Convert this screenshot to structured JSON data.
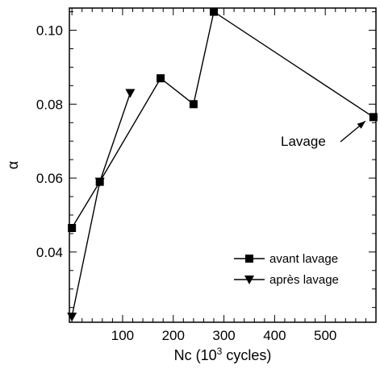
{
  "chart_data": {
    "type": "line",
    "xlabel": "Nc (10",
    "xlabel_sup": "3",
    "xlabel_suffix": " cycles)",
    "ylabel": "α",
    "xlim": [
      -5,
      600
    ],
    "ylim": [
      0.021,
      0.106
    ],
    "xticks": [
      100,
      200,
      300,
      400,
      500
    ],
    "yticks": [
      0.04,
      0.06,
      0.08,
      0.1
    ],
    "ytick_labels": [
      "0.04",
      "0.06",
      "0.08",
      "0.10"
    ],
    "grid": false,
    "legend_position": "bottom-right",
    "series": [
      {
        "name": "avant lavage",
        "marker": "square",
        "x": [
          0,
          55,
          175,
          240,
          280,
          595
        ],
        "y": [
          0.0465,
          0.059,
          0.087,
          0.08,
          0.105,
          0.0765
        ]
      },
      {
        "name": "après lavage",
        "marker": "triangle-down",
        "x": [
          0,
          55,
          115
        ],
        "y": [
          0.0225,
          0.059,
          0.083
        ]
      }
    ],
    "annotations": [
      {
        "text": "Lavage",
        "x": 595,
        "y": 0.0765
      }
    ]
  }
}
